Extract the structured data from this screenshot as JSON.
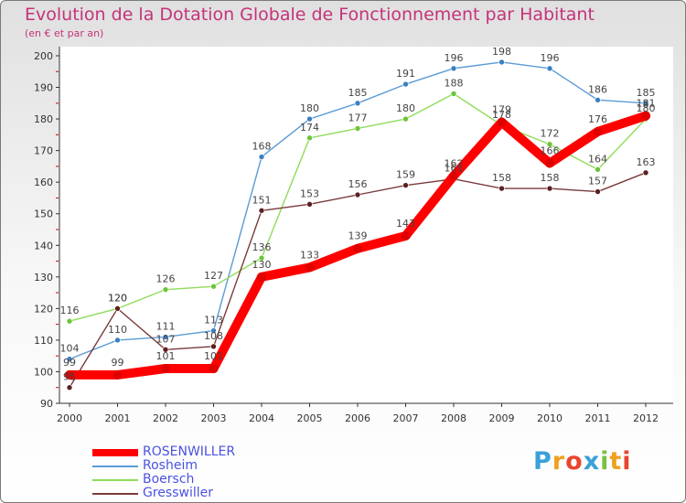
{
  "title": "Evolution de la Dotation Globale de Fonctionnement par Habitant",
  "subtitle": "(en € et par an)",
  "logo": [
    "P",
    "r",
    "o",
    "x",
    "i",
    "t",
    "i"
  ],
  "logo_colors": [
    "#3aa0d8",
    "#f0a020",
    "#e8452e",
    "#3aa0d8",
    "#7ac143",
    "#f0a020",
    "#e8452e"
  ],
  "chart_data": {
    "type": "line",
    "title": "Evolution de la Dotation Globale de Fonctionnement par Habitant",
    "ylabel": "(en € et par an)",
    "xlabel": "",
    "ylim": [
      90,
      200
    ],
    "yticks": [
      90,
      100,
      110,
      120,
      130,
      140,
      150,
      160,
      170,
      180,
      190,
      200
    ],
    "categories": [
      "2000",
      "2001",
      "2002",
      "2003",
      "2004",
      "2005",
      "2006",
      "2007",
      "2008",
      "2009",
      "2010",
      "2011",
      "2012"
    ],
    "grid": false,
    "legend_position": "bottom-left",
    "series": [
      {
        "name": "Rosheim",
        "color": "#5b9bd5",
        "marker": "#3b7fc4",
        "values": [
          104,
          110,
          111,
          113,
          168,
          180,
          185,
          191,
          196,
          198,
          196,
          186,
          185
        ]
      },
      {
        "name": "Boersch",
        "color": "#8fdc5a",
        "marker": "#6cc43a",
        "values": [
          116,
          120,
          126,
          127,
          136,
          174,
          177,
          180,
          188,
          178,
          172,
          164,
          180
        ]
      },
      {
        "name": "Gresswiller",
        "color": "#7a3a3a",
        "marker": "#5c2020",
        "values": [
          95,
          120,
          107,
          108,
          151,
          153,
          156,
          159,
          161,
          158,
          158,
          157,
          163
        ]
      },
      {
        "name": "ROSENWILLER",
        "color": "#ff0000",
        "marker": "#e00000",
        "bold": true,
        "values": [
          99,
          99,
          101,
          101,
          130,
          133,
          139,
          143,
          162,
          179,
          166,
          176,
          181
        ]
      }
    ]
  }
}
